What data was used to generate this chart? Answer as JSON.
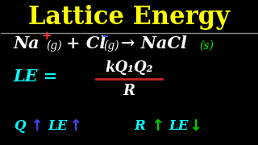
{
  "background_color": "#000000",
  "title": "Lattice Energy",
  "title_color": "#ffff00",
  "title_fontsize": 22,
  "separator_color": "#888888",
  "frac_line_color": "#cc2222",
  "numerator_text": "kQ₁Q₂",
  "denominator_text": "R"
}
